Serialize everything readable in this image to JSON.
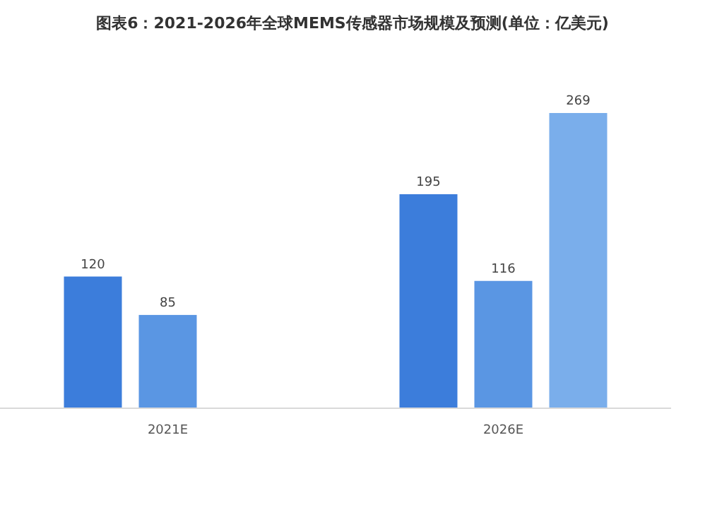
{
  "chart_data": {
    "type": "bar",
    "title": "图表6：2021-2026年全球MEMS传感器市场规模及预测(单位：亿美元)",
    "categories": [
      "2021E",
      "2026E"
    ],
    "series": [
      {
        "color": "#3c7ddb",
        "values": [
          120,
          195
        ]
      },
      {
        "color": "#5a96e3",
        "values": [
          85,
          116
        ]
      },
      {
        "color": "#7aaeeb",
        "values": [
          null,
          269
        ]
      }
    ],
    "data_labels": true
  }
}
